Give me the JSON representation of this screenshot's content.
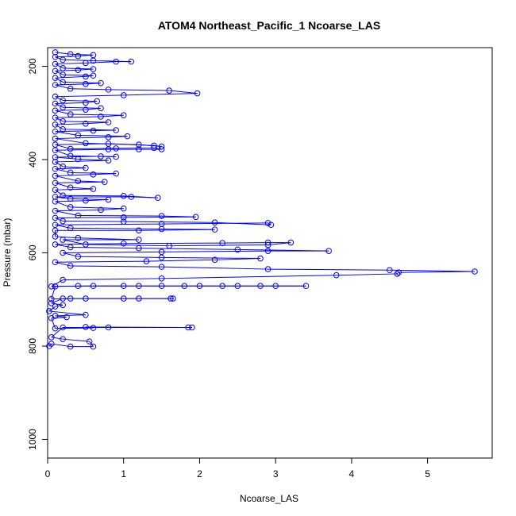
{
  "chart_data": {
    "type": "scatter",
    "title": "ATOM4 Northeast_Pacific_1 Ncoarse_LAS",
    "xlabel": "Ncoarse_LAS",
    "ylabel": "Pressure (mbar)",
    "xlim": [
      0,
      5.85
    ],
    "ylim": [
      1040,
      160
    ],
    "y_reversed": true,
    "x_ticks": [
      0,
      1,
      2,
      3,
      4,
      5
    ],
    "y_ticks": [
      200,
      400,
      600,
      800,
      1000
    ],
    "x_tick_labels": [
      "0",
      "1",
      "2",
      "3",
      "4",
      "5"
    ],
    "y_tick_labels": [
      "200",
      "400",
      "600",
      "800",
      "1000"
    ],
    "series_color": "#0000ff",
    "marker": "open-circle",
    "grid": false,
    "series": [
      {
        "values": [
          [
            0.02,
            800
          ],
          [
            0.05,
            795
          ],
          [
            0.3,
            801
          ],
          [
            0.6,
            801
          ],
          [
            0.55,
            790
          ],
          [
            0.2,
            785
          ],
          [
            0.05,
            781
          ],
          [
            0.2,
            760
          ],
          [
            0.8,
            760
          ],
          [
            1.9,
            760
          ],
          [
            1.85,
            760
          ],
          [
            0.5,
            759
          ],
          [
            0.6,
            761
          ],
          [
            0.1,
            762
          ],
          [
            0.05,
            740
          ],
          [
            0.25,
            738
          ],
          [
            0.1,
            735
          ],
          [
            0.5,
            733
          ],
          [
            0.02,
            725
          ],
          [
            0.1,
            715
          ],
          [
            0.2,
            712
          ],
          [
            0.05,
            708
          ],
          [
            0.2,
            698
          ],
          [
            0.5,
            698
          ],
          [
            1.0,
            698
          ],
          [
            1.2,
            698
          ],
          [
            1.65,
            698
          ],
          [
            1.62,
            698
          ],
          [
            0.3,
            698
          ],
          [
            0.05,
            699
          ],
          [
            0.1,
            672
          ],
          [
            0.6,
            671
          ],
          [
            1.0,
            671
          ],
          [
            1.5,
            671
          ],
          [
            2.0,
            671
          ],
          [
            2.5,
            671
          ],
          [
            3.0,
            671
          ],
          [
            3.4,
            671
          ],
          [
            2.8,
            671
          ],
          [
            2.3,
            671
          ],
          [
            1.8,
            671
          ],
          [
            1.2,
            671
          ],
          [
            0.4,
            671
          ],
          [
            0.05,
            672
          ],
          [
            0.2,
            658
          ],
          [
            1.5,
            655
          ],
          [
            3.8,
            648
          ],
          [
            4.6,
            645
          ],
          [
            4.62,
            642
          ],
          [
            5.62,
            640
          ],
          [
            4.5,
            637
          ],
          [
            2.9,
            635
          ],
          [
            1.5,
            630
          ],
          [
            0.3,
            628
          ],
          [
            0.1,
            620
          ],
          [
            1.3,
            618
          ],
          [
            2.2,
            615
          ],
          [
            2.8,
            612
          ],
          [
            1.5,
            610
          ],
          [
            0.4,
            608
          ],
          [
            0.2,
            600
          ],
          [
            1.5,
            598
          ],
          [
            2.9,
            596
          ],
          [
            3.7,
            596
          ],
          [
            2.5,
            593
          ],
          [
            1.2,
            590
          ],
          [
            0.3,
            588
          ],
          [
            0.1,
            582
          ],
          [
            1.0,
            580
          ],
          [
            2.3,
            579
          ],
          [
            2.9,
            578
          ],
          [
            3.2,
            578
          ],
          [
            2.9,
            583
          ],
          [
            1.6,
            585
          ],
          [
            0.5,
            582
          ],
          [
            0.2,
            572
          ],
          [
            1.2,
            572
          ],
          [
            0.4,
            568
          ],
          [
            0.1,
            565
          ],
          [
            0.1,
            552
          ],
          [
            1.2,
            552
          ],
          [
            2.2,
            550
          ],
          [
            1.5,
            549
          ],
          [
            0.3,
            547
          ],
          [
            0.1,
            540
          ],
          [
            1.5,
            538
          ],
          [
            2.9,
            536
          ],
          [
            2.94,
            540
          ],
          [
            2.2,
            535
          ],
          [
            1.0,
            533
          ],
          [
            0.2,
            532
          ],
          [
            0.1,
            525
          ],
          [
            1.0,
            524
          ],
          [
            1.95,
            523
          ],
          [
            1.5,
            521
          ],
          [
            0.4,
            520
          ],
          [
            0.1,
            510
          ],
          [
            0.7,
            508
          ],
          [
            1.0,
            505
          ],
          [
            0.3,
            502
          ],
          [
            0.1,
            490
          ],
          [
            0.5,
            488
          ],
          [
            0.8,
            486
          ],
          [
            0.3,
            484
          ],
          [
            0.1,
            480
          ],
          [
            1.1,
            480
          ],
          [
            1.45,
            482
          ],
          [
            1.0,
            478
          ],
          [
            0.2,
            477
          ],
          [
            0.1,
            465
          ],
          [
            0.6,
            463
          ],
          [
            0.3,
            460
          ],
          [
            0.1,
            450
          ],
          [
            0.75,
            448
          ],
          [
            0.4,
            446
          ],
          [
            0.1,
            435
          ],
          [
            0.6,
            432
          ],
          [
            0.9,
            430
          ],
          [
            0.3,
            428
          ],
          [
            0.1,
            420
          ],
          [
            0.5,
            418
          ],
          [
            0.2,
            415
          ],
          [
            0.1,
            405
          ],
          [
            0.8,
            402
          ],
          [
            0.4,
            399
          ],
          [
            0.1,
            395
          ],
          [
            0.7,
            393
          ],
          [
            0.9,
            394
          ],
          [
            0.3,
            392
          ],
          [
            0.1,
            380
          ],
          [
            0.8,
            378
          ],
          [
            1.2,
            378
          ],
          [
            1.5,
            378
          ],
          [
            1.4,
            375
          ],
          [
            0.9,
            376
          ],
          [
            0.3,
            377
          ],
          [
            0.1,
            368
          ],
          [
            0.8,
            366
          ],
          [
            1.4,
            370
          ],
          [
            1.5,
            372
          ],
          [
            1.2,
            368
          ],
          [
            0.5,
            365
          ],
          [
            0.1,
            355
          ],
          [
            0.8,
            352
          ],
          [
            1.05,
            350
          ],
          [
            0.4,
            348
          ],
          [
            0.1,
            340
          ],
          [
            0.6,
            338
          ],
          [
            0.9,
            337
          ],
          [
            0.2,
            335
          ],
          [
            0.1,
            325
          ],
          [
            0.5,
            323
          ],
          [
            0.8,
            320
          ],
          [
            0.2,
            318
          ],
          [
            0.1,
            310
          ],
          [
            0.7,
            308
          ],
          [
            1.0,
            305
          ],
          [
            0.3,
            303
          ],
          [
            0.1,
            295
          ],
          [
            0.5,
            293
          ],
          [
            0.7,
            290
          ],
          [
            0.2,
            288
          ],
          [
            0.1,
            280
          ],
          [
            0.5,
            278
          ],
          [
            0.65,
            275
          ],
          [
            0.2,
            273
          ],
          [
            0.1,
            265
          ],
          [
            1.0,
            262
          ],
          [
            1.97,
            258
          ],
          [
            1.6,
            252
          ],
          [
            0.8,
            250
          ],
          [
            0.3,
            248
          ],
          [
            0.1,
            240
          ],
          [
            0.5,
            238
          ],
          [
            0.7,
            236
          ],
          [
            0.2,
            234
          ],
          [
            0.1,
            225
          ],
          [
            0.5,
            222
          ],
          [
            0.6,
            220
          ],
          [
            0.2,
            218
          ],
          [
            0.1,
            210
          ],
          [
            0.4,
            208
          ],
          [
            0.6,
            206
          ],
          [
            0.2,
            204
          ],
          [
            0.1,
            195
          ],
          [
            0.5,
            193
          ],
          [
            0.9,
            190
          ],
          [
            1.1,
            190
          ],
          [
            0.6,
            188
          ],
          [
            0.2,
            186
          ],
          [
            0.1,
            180
          ],
          [
            0.4,
            178
          ],
          [
            0.6,
            176
          ],
          [
            0.3,
            174
          ],
          [
            0.1,
            170
          ]
        ]
      }
    ]
  }
}
